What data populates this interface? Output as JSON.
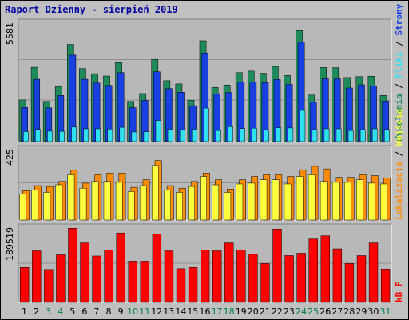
{
  "title": "Raport Dzienny -  sierpień 2019",
  "colors": {
    "background": "#c0c0c0",
    "plot_bg": "#b8b8b8",
    "grid": "#909090",
    "title": "#0000a0",
    "wizyty": "#1f8a5a",
    "strony": "#1840e0",
    "pliki": "#30e0f0",
    "lokalizacje": "#ff8c00",
    "wejscia": "#ffff40",
    "kb": "#ff0000",
    "weekend_tick": "#008040",
    "weekday_tick": "#000000"
  },
  "legend": {
    "top_panel": [
      {
        "label": "Wywołania",
        "color": "#1f8a5a"
      },
      {
        "label": "Pliki",
        "color": "#30e0f0"
      },
      {
        "label": "Strony",
        "color": "#1840e0"
      }
    ],
    "middle_panel": [
      {
        "label": "Lokalizacje",
        "color": "#ff8c00"
      },
      {
        "label": "Wejścia",
        "color": "#ffff40"
      }
    ],
    "bottom_panel": [
      {
        "label": "kB F",
        "color": "#ff0000"
      }
    ]
  },
  "chart_data": {
    "type": "bar",
    "x": [
      1,
      2,
      3,
      4,
      5,
      6,
      7,
      8,
      9,
      10,
      11,
      12,
      13,
      14,
      15,
      16,
      17,
      18,
      19,
      20,
      21,
      22,
      23,
      24,
      25,
      26,
      27,
      28,
      29,
      30,
      31
    ],
    "weekend_days": [
      3,
      4,
      10,
      11,
      17,
      18,
      24,
      25,
      31
    ],
    "panels": [
      {
        "name": "top",
        "ymax": 5581,
        "ymax_label": "5581",
        "series": [
          {
            "name": "Wywołania",
            "values": [
              1950,
              3480,
              1880,
              2580,
              4550,
              3420,
              3180,
              3070,
              3700,
              1880,
              2250,
              3850,
              2850,
              2700,
              1940,
              4720,
              2540,
              2650,
              3230,
              3300,
              3200,
              3520,
              3100,
              5200,
              2180,
              3470,
              3460,
              3000,
              3040,
              3060,
              2160
            ]
          },
          {
            "name": "Strony",
            "values": [
              1600,
              2920,
              1580,
              2160,
              4050,
              2920,
              2740,
              2630,
              3230,
              1590,
              1930,
              3270,
              2480,
              2310,
              1680,
              4150,
              2230,
              2300,
              2780,
              2780,
              2760,
              2910,
              2680,
              4650,
              1860,
              2940,
              2940,
              2510,
              2660,
              2610,
              1900
            ]
          },
          {
            "name": "Pliki",
            "values": [
              470,
              570,
              490,
              480,
              680,
              600,
              600,
              590,
              670,
              450,
              460,
              990,
              580,
              560,
              580,
              1570,
              520,
              700,
              610,
              630,
              560,
              650,
              640,
              1460,
              560,
              600,
              600,
              520,
              560,
              600,
              570
            ]
          }
        ]
      },
      {
        "name": "middle",
        "ymax": 425,
        "ymax_label": "425",
        "series": [
          {
            "name": "Lokalizacje",
            "values": [
              175,
              205,
              200,
              230,
              300,
              220,
              270,
              280,
              280,
              195,
              240,
              355,
              205,
              190,
              230,
              280,
              240,
              185,
              240,
              260,
              270,
              270,
              260,
              300,
              320,
              305,
              255,
              255,
              270,
              265,
              250
            ]
          },
          {
            "name": "Wejścia",
            "values": [
              155,
              180,
              165,
              210,
              270,
              190,
              230,
              230,
              225,
              170,
              205,
              325,
              180,
              165,
              200,
              260,
              210,
              165,
              215,
              220,
              240,
              240,
              215,
              260,
              270,
              230,
              225,
              225,
              240,
              220,
              215
            ]
          }
        ]
      },
      {
        "name": "bottom",
        "ymax": 189519,
        "ymax_label": "189519",
        "series": [
          {
            "name": "kB F",
            "values": [
              88000,
              130000,
              83000,
              120000,
              187000,
              150000,
              117000,
              132000,
              175000,
              104000,
              104000,
              172000,
              130000,
              85000,
              88000,
              132000,
              130000,
              150000,
              132000,
              122000,
              98000,
              185000,
              118000,
              124000,
              160000,
              168000,
              135000,
              98000,
              118000,
              150000,
              84000
            ]
          }
        ]
      }
    ]
  }
}
